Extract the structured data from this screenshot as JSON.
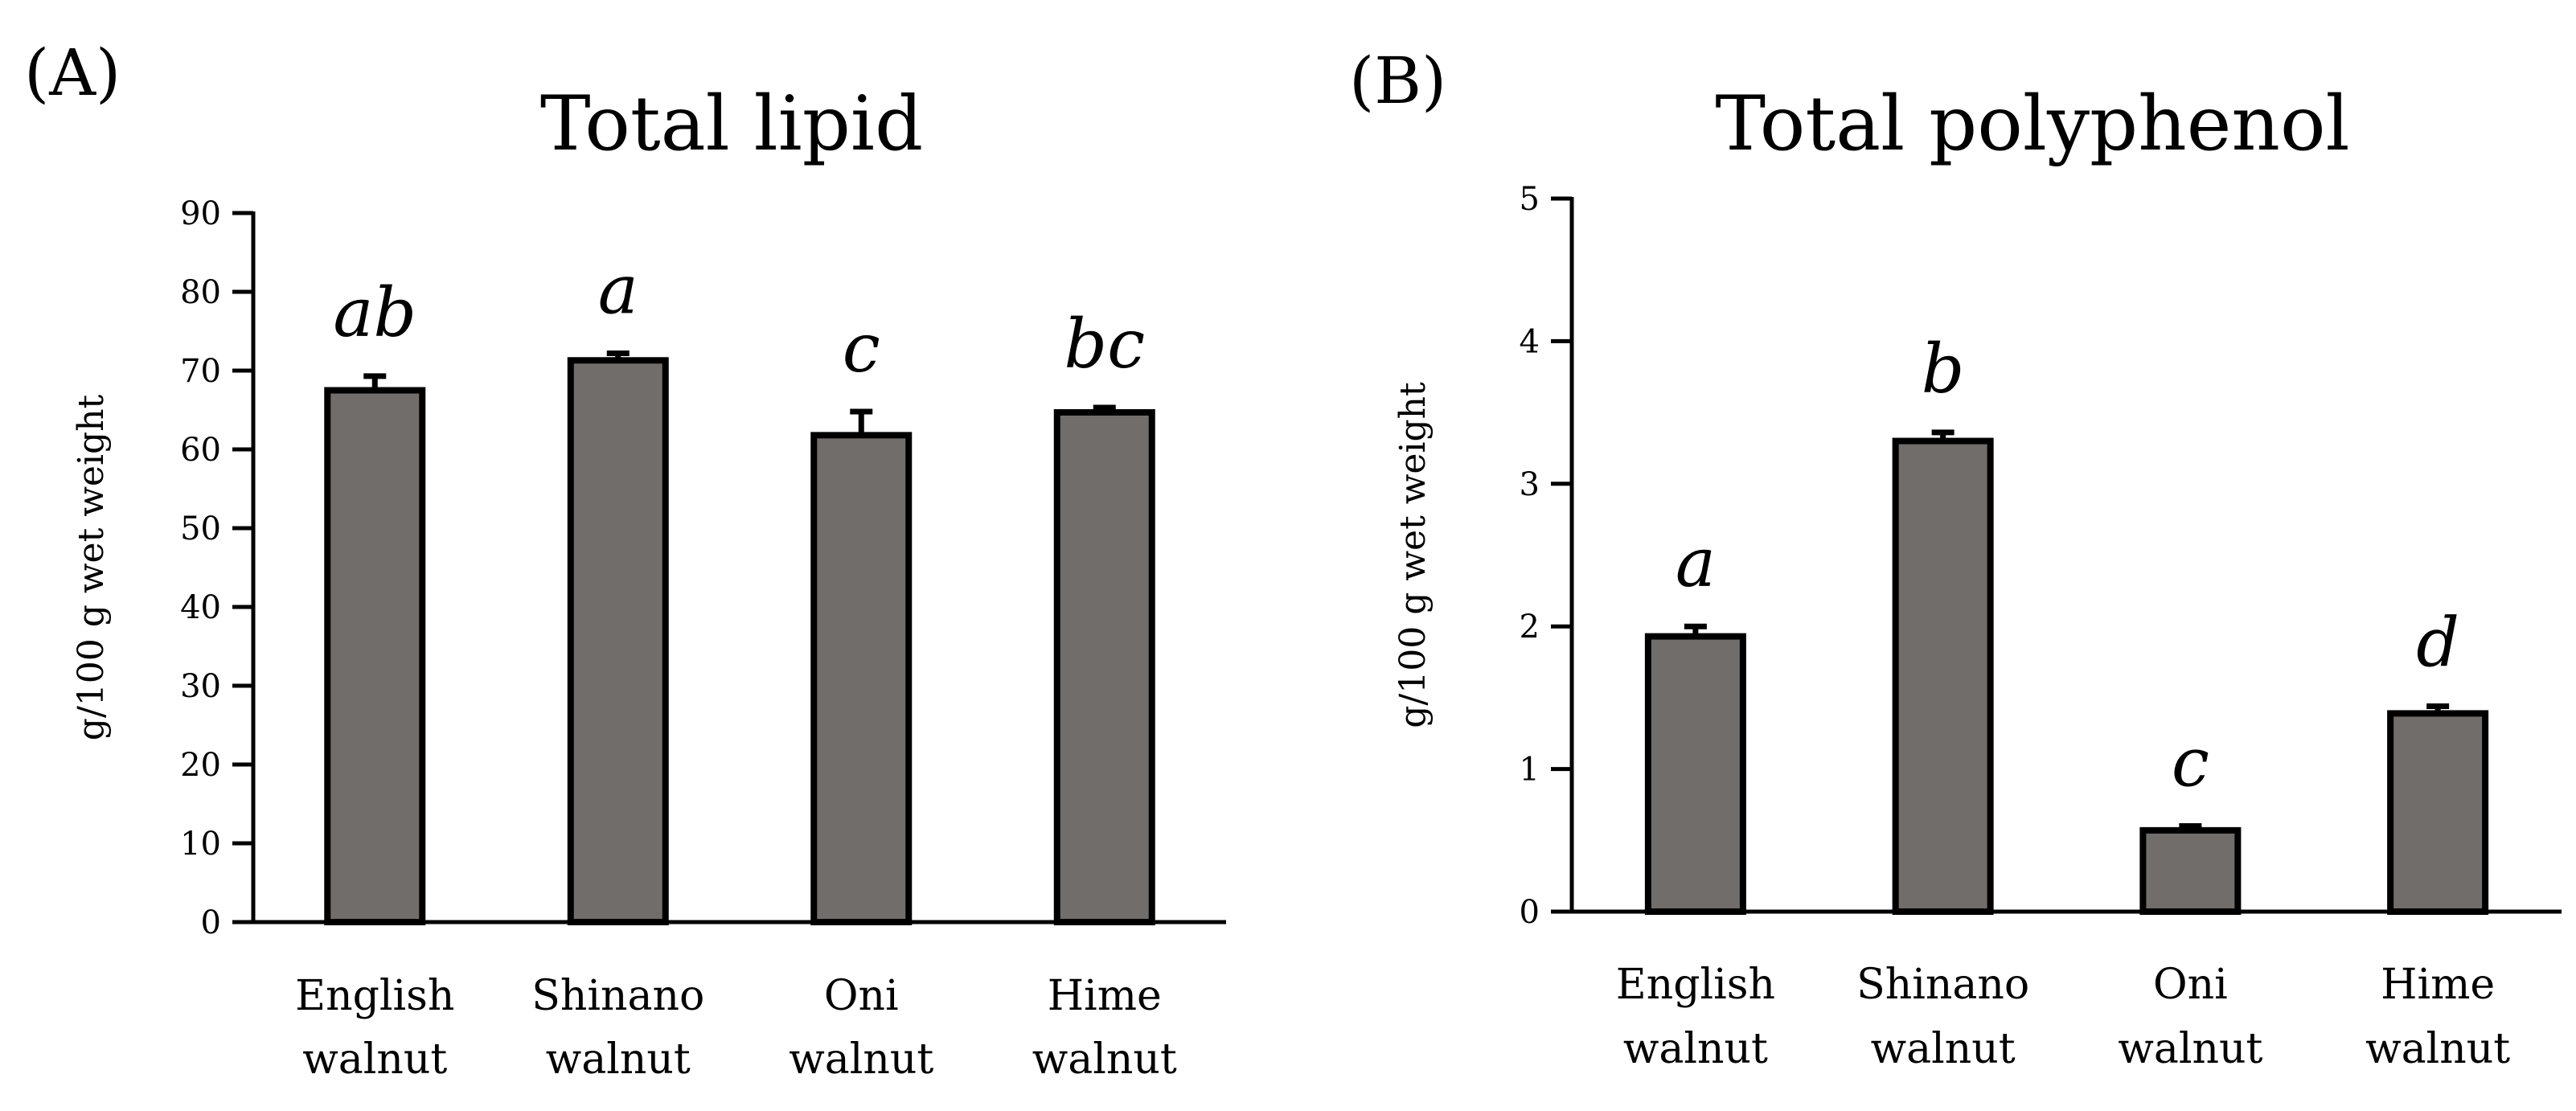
{
  "chart_data": [
    {
      "panel_label": "(A)",
      "type": "bar",
      "title": "Total lipid",
      "ylabel": "g/100 g wet weight",
      "xlabel": "",
      "ylim": [
        0,
        90
      ],
      "yticks": [
        "0",
        "10",
        "20",
        "30",
        "40",
        "50",
        "60",
        "70",
        "80",
        "90"
      ],
      "categories": [
        [
          "English",
          "walnut"
        ],
        [
          "Shinano",
          "walnut"
        ],
        [
          "Oni",
          "walnut"
        ],
        [
          "Hime",
          "walnut"
        ]
      ],
      "values": [
        67.5,
        71.3,
        61.8,
        64.7
      ],
      "errors": [
        1.8,
        0.9,
        3.0,
        0.6
      ],
      "significance": [
        "ab",
        "a",
        "c",
        "bc"
      ],
      "grid": false
    },
    {
      "panel_label": "(B)",
      "type": "bar",
      "title": "Total polyphenol",
      "ylabel": "g/100 g wet weight",
      "xlabel": "",
      "ylim": [
        0,
        5
      ],
      "yticks": [
        "0",
        "1",
        "2",
        "3",
        "4",
        "5"
      ],
      "categories": [
        [
          "English",
          "walnut"
        ],
        [
          "Shinano",
          "walnut"
        ],
        [
          "Oni",
          "walnut"
        ],
        [
          "Hime",
          "walnut"
        ]
      ],
      "values": [
        1.93,
        3.3,
        0.57,
        1.39
      ],
      "errors": [
        0.07,
        0.06,
        0.03,
        0.05
      ],
      "significance": [
        "a",
        "b",
        "c",
        "d"
      ],
      "grid": false
    }
  ]
}
